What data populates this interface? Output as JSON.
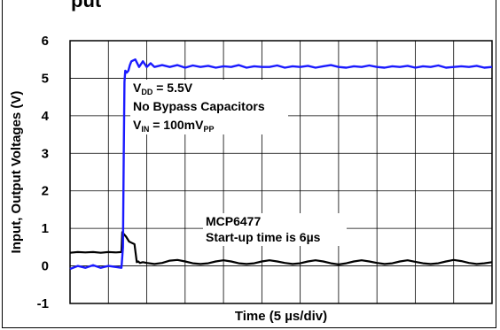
{
  "header": {
    "clipped_title": "put"
  },
  "chart_data": {
    "type": "line",
    "title": "",
    "xlabel": "Time (5 µs/div)",
    "ylabel": "Input, Output Voltages (V)",
    "xlim": [
      -10,
      45
    ],
    "ylim": [
      -1,
      6
    ],
    "x_divisions": 11,
    "yticks": [
      -1,
      0,
      1,
      2,
      3,
      4,
      5,
      6
    ],
    "ytick_labels": [
      "-1",
      "0",
      "1",
      "2",
      "3",
      "4",
      "5",
      "6"
    ],
    "grid": true,
    "legend": "none",
    "colors": {
      "output": "#1a1aff",
      "input": "#000000",
      "grid": "#000000"
    },
    "series": [
      {
        "x": [
          -10,
          -9,
          -8,
          -7,
          -6,
          -5,
          -4,
          -3.3,
          -3.1,
          -3,
          -2.9,
          -2.8,
          -2.6,
          -2.4,
          -2.2,
          -2,
          -1.5,
          -1,
          -0.5,
          0,
          0.5,
          1,
          2,
          3,
          4,
          5,
          6,
          7,
          8,
          9,
          10,
          11,
          12,
          13,
          14,
          15,
          16,
          17,
          18,
          19,
          20,
          21,
          22,
          23,
          24,
          25,
          26,
          27,
          28,
          29,
          30,
          31,
          32,
          33,
          34,
          35,
          36,
          37,
          38,
          39,
          40,
          41,
          42,
          43,
          44,
          45
        ],
        "values": [
          -0.08,
          0,
          -0.05,
          0.02,
          -0.05,
          0,
          -0.03,
          -0.05,
          0.5,
          3.0,
          4.9,
          5.2,
          5.15,
          5.2,
          5.35,
          5.45,
          5.5,
          5.3,
          5.45,
          5.3,
          5.4,
          5.3,
          5.35,
          5.3,
          5.35,
          5.28,
          5.34,
          5.3,
          5.33,
          5.28,
          5.32,
          5.3,
          5.35,
          5.28,
          5.32,
          5.3,
          5.3,
          5.34,
          5.28,
          5.32,
          5.3,
          5.33,
          5.28,
          5.32,
          5.35,
          5.3,
          5.28,
          5.32,
          5.3,
          5.34,
          5.3,
          5.28,
          5.32,
          5.3,
          5.33,
          5.28,
          5.32,
          5.3,
          5.34,
          5.28,
          5.3,
          5.32,
          5.3,
          5.33,
          5.28,
          5.3
        ]
      },
      {
        "x": [
          -10,
          -9,
          -8,
          -7,
          -6,
          -5,
          -4,
          -3.3,
          -3.2,
          -3,
          -2.7,
          -2.3,
          -2,
          -1.6,
          -1.3,
          -1.1,
          -0.9,
          -0.5,
          0,
          1,
          2,
          3,
          4,
          5,
          6,
          7,
          8,
          9,
          10,
          11,
          12,
          13,
          14,
          15,
          16,
          17,
          18,
          19,
          20,
          21,
          22,
          23,
          24,
          25,
          26,
          27,
          28,
          29,
          30,
          31,
          32,
          33,
          34,
          35,
          36,
          37,
          38,
          39,
          40,
          41,
          42,
          43,
          44,
          45
        ],
        "values": [
          0.35,
          0.37,
          0.36,
          0.37,
          0.35,
          0.37,
          0.36,
          0.37,
          0.9,
          0.85,
          0.78,
          0.65,
          0.62,
          0.58,
          0.1,
          0.12,
          0.08,
          0.1,
          0.08,
          0.05,
          0.08,
          0.14,
          0.16,
          0.12,
          0.07,
          0.05,
          0.07,
          0.12,
          0.15,
          0.12,
          0.07,
          0.05,
          0.07,
          0.12,
          0.15,
          0.12,
          0.08,
          0.05,
          0.07,
          0.12,
          0.15,
          0.12,
          0.07,
          0.04,
          0.07,
          0.12,
          0.15,
          0.12,
          0.08,
          0.05,
          0.07,
          0.12,
          0.15,
          0.11,
          0.07,
          0.05,
          0.07,
          0.12,
          0.16,
          0.13,
          0.08,
          0.05,
          0.07,
          0.1
        ]
      }
    ],
    "annotations": {
      "vdd": {
        "prefix": "V",
        "sub": "DD",
        "text": " = 5.5V"
      },
      "bypass": "No Bypass Capacitors",
      "vin": {
        "prefix": "V",
        "sub": "IN",
        "text": " = 100mV",
        "sub2": "PP"
      },
      "device": "MCP6477",
      "startup": "Start-up time is 6µs"
    }
  }
}
